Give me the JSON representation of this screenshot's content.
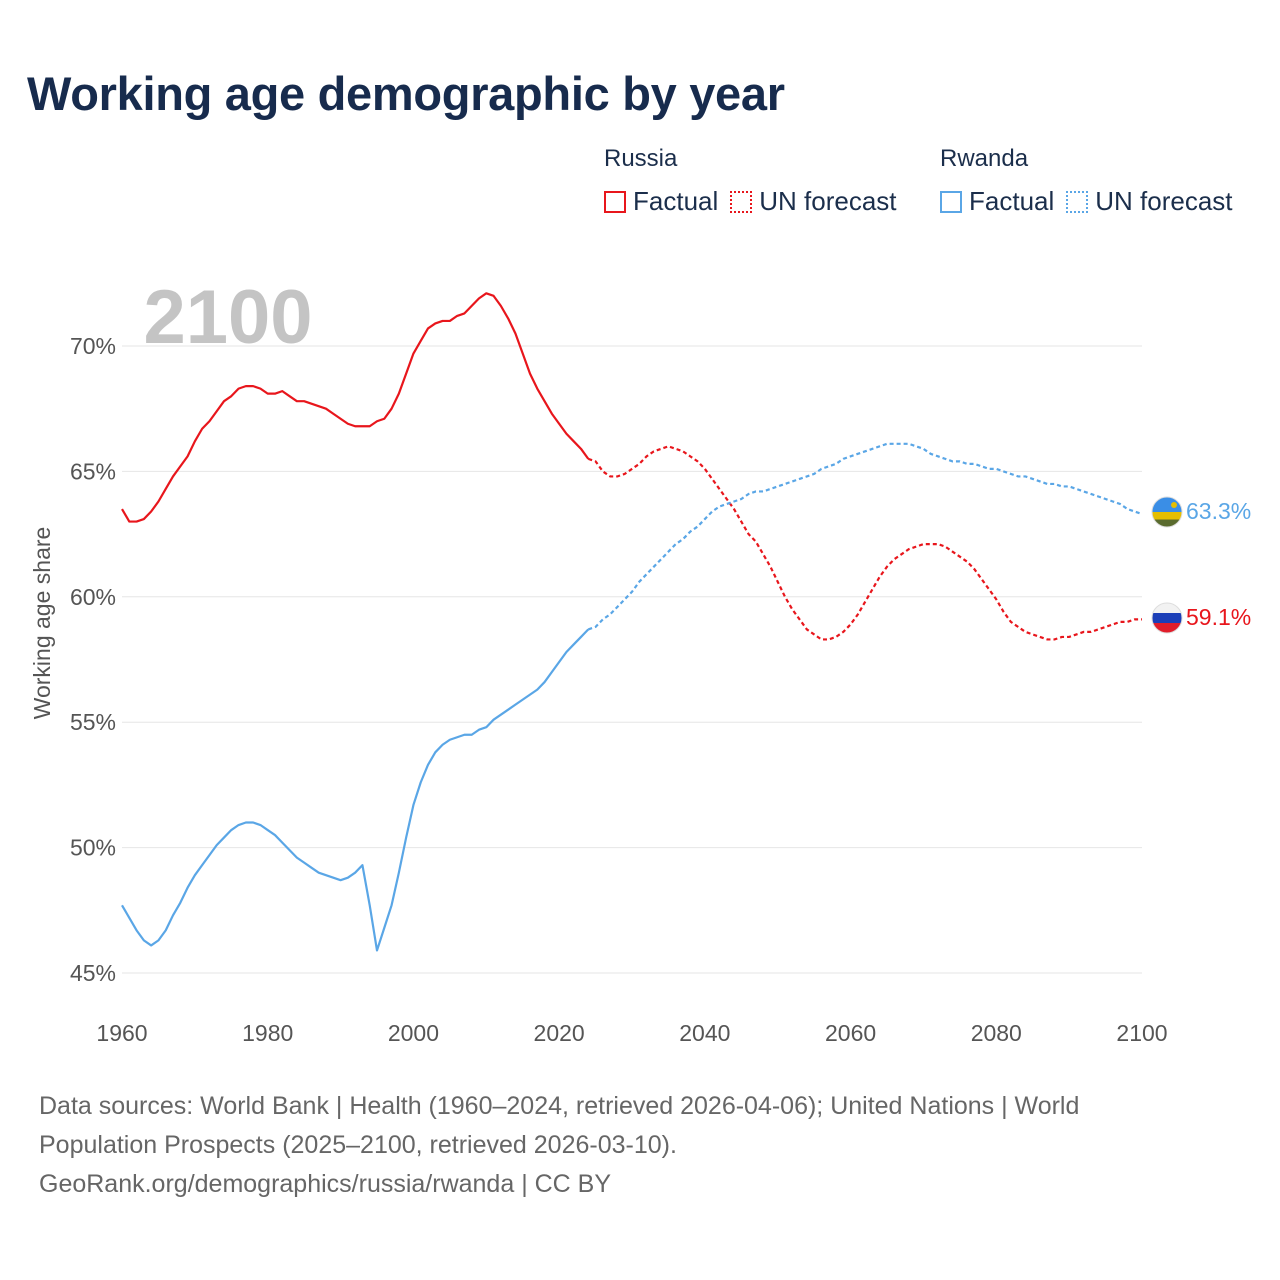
{
  "title": "Working age demographic by year",
  "legend": {
    "groups": [
      {
        "name": "Russia",
        "color": "#e8161c",
        "factual_label": "Factual",
        "forecast_label": "UN forecast"
      },
      {
        "name": "Rwanda",
        "color": "#5aa6e6",
        "factual_label": "Factual",
        "forecast_label": "UN forecast"
      }
    ]
  },
  "chart_data": {
    "type": "line",
    "title": "Working age demographic by year",
    "xlabel": "",
    "ylabel": "Working age share",
    "xlim": [
      1960,
      2100
    ],
    "ylim": [
      45,
      72.5
    ],
    "x_ticks": [
      1960,
      1980,
      2000,
      2020,
      2040,
      2060,
      2080,
      2100
    ],
    "x_tick_labels": [
      "1960",
      "1980",
      "2000",
      "2020",
      "2040",
      "2060",
      "2080",
      "2100"
    ],
    "y_ticks": [
      45,
      50,
      55,
      60,
      65,
      70
    ],
    "y_tick_labels": [
      "45%",
      "50%",
      "55%",
      "60%",
      "65%",
      "70%"
    ],
    "grid": true,
    "year_watermark": "2100",
    "factual_range": [
      1960,
      2024
    ],
    "forecast_range": [
      2025,
      2100
    ],
    "series": [
      {
        "name": "Russia",
        "color": "#e8161c",
        "end_label": "59.1%",
        "flag": "russia-flag",
        "points": [
          [
            1960,
            63.5
          ],
          [
            1961,
            63.0
          ],
          [
            1962,
            63.0
          ],
          [
            1963,
            63.1
          ],
          [
            1964,
            63.4
          ],
          [
            1965,
            63.8
          ],
          [
            1966,
            64.3
          ],
          [
            1967,
            64.8
          ],
          [
            1968,
            65.2
          ],
          [
            1969,
            65.6
          ],
          [
            1970,
            66.2
          ],
          [
            1971,
            66.7
          ],
          [
            1972,
            67.0
          ],
          [
            1973,
            67.4
          ],
          [
            1974,
            67.8
          ],
          [
            1975,
            68.0
          ],
          [
            1976,
            68.3
          ],
          [
            1977,
            68.4
          ],
          [
            1978,
            68.4
          ],
          [
            1979,
            68.3
          ],
          [
            1980,
            68.1
          ],
          [
            1981,
            68.1
          ],
          [
            1982,
            68.2
          ],
          [
            1983,
            68.0
          ],
          [
            1984,
            67.8
          ],
          [
            1985,
            67.8
          ],
          [
            1986,
            67.7
          ],
          [
            1987,
            67.6
          ],
          [
            1988,
            67.5
          ],
          [
            1989,
            67.3
          ],
          [
            1990,
            67.1
          ],
          [
            1991,
            66.9
          ],
          [
            1992,
            66.8
          ],
          [
            1993,
            66.8
          ],
          [
            1994,
            66.8
          ],
          [
            1995,
            67.0
          ],
          [
            1996,
            67.1
          ],
          [
            1997,
            67.5
          ],
          [
            1998,
            68.1
          ],
          [
            1999,
            68.9
          ],
          [
            2000,
            69.7
          ],
          [
            2001,
            70.2
          ],
          [
            2002,
            70.7
          ],
          [
            2003,
            70.9
          ],
          [
            2004,
            71.0
          ],
          [
            2005,
            71.0
          ],
          [
            2006,
            71.2
          ],
          [
            2007,
            71.3
          ],
          [
            2008,
            71.6
          ],
          [
            2009,
            71.9
          ],
          [
            2010,
            72.1
          ],
          [
            2011,
            72.0
          ],
          [
            2012,
            71.6
          ],
          [
            2013,
            71.1
          ],
          [
            2014,
            70.5
          ],
          [
            2015,
            69.7
          ],
          [
            2016,
            68.9
          ],
          [
            2017,
            68.3
          ],
          [
            2018,
            67.8
          ],
          [
            2019,
            67.3
          ],
          [
            2020,
            66.9
          ],
          [
            2021,
            66.5
          ],
          [
            2022,
            66.2
          ],
          [
            2023,
            65.9
          ],
          [
            2024,
            65.5
          ],
          [
            2025,
            65.4
          ],
          [
            2026,
            65.0
          ],
          [
            2027,
            64.8
          ],
          [
            2028,
            64.8
          ],
          [
            2029,
            64.9
          ],
          [
            2030,
            65.1
          ],
          [
            2031,
            65.3
          ],
          [
            2032,
            65.6
          ],
          [
            2033,
            65.8
          ],
          [
            2034,
            65.9
          ],
          [
            2035,
            66.0
          ],
          [
            2036,
            65.9
          ],
          [
            2037,
            65.8
          ],
          [
            2038,
            65.6
          ],
          [
            2039,
            65.4
          ],
          [
            2040,
            65.1
          ],
          [
            2041,
            64.7
          ],
          [
            2042,
            64.3
          ],
          [
            2043,
            63.9
          ],
          [
            2044,
            63.5
          ],
          [
            2045,
            63.0
          ],
          [
            2046,
            62.5
          ],
          [
            2047,
            62.2
          ],
          [
            2048,
            61.7
          ],
          [
            2049,
            61.2
          ],
          [
            2050,
            60.6
          ],
          [
            2051,
            60.0
          ],
          [
            2052,
            59.5
          ],
          [
            2053,
            59.1
          ],
          [
            2054,
            58.7
          ],
          [
            2055,
            58.5
          ],
          [
            2056,
            58.3
          ],
          [
            2057,
            58.3
          ],
          [
            2058,
            58.4
          ],
          [
            2059,
            58.6
          ],
          [
            2060,
            58.9
          ],
          [
            2061,
            59.3
          ],
          [
            2062,
            59.8
          ],
          [
            2063,
            60.3
          ],
          [
            2064,
            60.8
          ],
          [
            2065,
            61.2
          ],
          [
            2066,
            61.5
          ],
          [
            2067,
            61.7
          ],
          [
            2068,
            61.9
          ],
          [
            2069,
            62.0
          ],
          [
            2070,
            62.1
          ],
          [
            2071,
            62.1
          ],
          [
            2072,
            62.1
          ],
          [
            2073,
            62.0
          ],
          [
            2074,
            61.8
          ],
          [
            2075,
            61.6
          ],
          [
            2076,
            61.4
          ],
          [
            2077,
            61.1
          ],
          [
            2078,
            60.7
          ],
          [
            2079,
            60.3
          ],
          [
            2080,
            59.9
          ],
          [
            2081,
            59.4
          ],
          [
            2082,
            59.0
          ],
          [
            2083,
            58.8
          ],
          [
            2084,
            58.6
          ],
          [
            2085,
            58.5
          ],
          [
            2086,
            58.4
          ],
          [
            2087,
            58.3
          ],
          [
            2088,
            58.3
          ],
          [
            2089,
            58.4
          ],
          [
            2090,
            58.4
          ],
          [
            2091,
            58.5
          ],
          [
            2092,
            58.6
          ],
          [
            2093,
            58.6
          ],
          [
            2094,
            58.7
          ],
          [
            2095,
            58.8
          ],
          [
            2096,
            58.9
          ],
          [
            2097,
            59.0
          ],
          [
            2098,
            59.0
          ],
          [
            2099,
            59.1
          ],
          [
            2100,
            59.1
          ]
        ]
      },
      {
        "name": "Rwanda",
        "color": "#5aa6e6",
        "end_label": "63.3%",
        "flag": "rwanda-flag",
        "points": [
          [
            1960,
            47.7
          ],
          [
            1961,
            47.2
          ],
          [
            1962,
            46.7
          ],
          [
            1963,
            46.3
          ],
          [
            1964,
            46.1
          ],
          [
            1965,
            46.3
          ],
          [
            1966,
            46.7
          ],
          [
            1967,
            47.3
          ],
          [
            1968,
            47.8
          ],
          [
            1969,
            48.4
          ],
          [
            1970,
            48.9
          ],
          [
            1971,
            49.3
          ],
          [
            1972,
            49.7
          ],
          [
            1973,
            50.1
          ],
          [
            1974,
            50.4
          ],
          [
            1975,
            50.7
          ],
          [
            1976,
            50.9
          ],
          [
            1977,
            51.0
          ],
          [
            1978,
            51.0
          ],
          [
            1979,
            50.9
          ],
          [
            1980,
            50.7
          ],
          [
            1981,
            50.5
          ],
          [
            1982,
            50.2
          ],
          [
            1983,
            49.9
          ],
          [
            1984,
            49.6
          ],
          [
            1985,
            49.4
          ],
          [
            1986,
            49.2
          ],
          [
            1987,
            49.0
          ],
          [
            1988,
            48.9
          ],
          [
            1989,
            48.8
          ],
          [
            1990,
            48.7
          ],
          [
            1991,
            48.8
          ],
          [
            1992,
            49.0
          ],
          [
            1993,
            49.3
          ],
          [
            1994,
            47.7
          ],
          [
            1995,
            45.9
          ],
          [
            1996,
            46.8
          ],
          [
            1997,
            47.7
          ],
          [
            1998,
            49.0
          ],
          [
            1999,
            50.4
          ],
          [
            2000,
            51.7
          ],
          [
            2001,
            52.6
          ],
          [
            2002,
            53.3
          ],
          [
            2003,
            53.8
          ],
          [
            2004,
            54.1
          ],
          [
            2005,
            54.3
          ],
          [
            2006,
            54.4
          ],
          [
            2007,
            54.5
          ],
          [
            2008,
            54.5
          ],
          [
            2009,
            54.7
          ],
          [
            2010,
            54.8
          ],
          [
            2011,
            55.1
          ],
          [
            2012,
            55.3
          ],
          [
            2013,
            55.5
          ],
          [
            2014,
            55.7
          ],
          [
            2015,
            55.9
          ],
          [
            2016,
            56.1
          ],
          [
            2017,
            56.3
          ],
          [
            2018,
            56.6
          ],
          [
            2019,
            57.0
          ],
          [
            2020,
            57.4
          ],
          [
            2021,
            57.8
          ],
          [
            2022,
            58.1
          ],
          [
            2023,
            58.4
          ],
          [
            2024,
            58.7
          ],
          [
            2025,
            58.8
          ],
          [
            2026,
            59.1
          ],
          [
            2027,
            59.3
          ],
          [
            2028,
            59.6
          ],
          [
            2029,
            59.9
          ],
          [
            2030,
            60.2
          ],
          [
            2031,
            60.6
          ],
          [
            2032,
            60.9
          ],
          [
            2033,
            61.2
          ],
          [
            2034,
            61.5
          ],
          [
            2035,
            61.8
          ],
          [
            2036,
            62.1
          ],
          [
            2037,
            62.3
          ],
          [
            2038,
            62.6
          ],
          [
            2039,
            62.8
          ],
          [
            2040,
            63.1
          ],
          [
            2041,
            63.4
          ],
          [
            2042,
            63.6
          ],
          [
            2043,
            63.7
          ],
          [
            2044,
            63.8
          ],
          [
            2045,
            63.9
          ],
          [
            2046,
            64.1
          ],
          [
            2047,
            64.2
          ],
          [
            2048,
            64.2
          ],
          [
            2049,
            64.3
          ],
          [
            2050,
            64.4
          ],
          [
            2051,
            64.5
          ],
          [
            2052,
            64.6
          ],
          [
            2053,
            64.7
          ],
          [
            2054,
            64.8
          ],
          [
            2055,
            64.9
          ],
          [
            2056,
            65.1
          ],
          [
            2057,
            65.2
          ],
          [
            2058,
            65.3
          ],
          [
            2059,
            65.5
          ],
          [
            2060,
            65.6
          ],
          [
            2061,
            65.7
          ],
          [
            2062,
            65.8
          ],
          [
            2063,
            65.9
          ],
          [
            2064,
            66.0
          ],
          [
            2065,
            66.1
          ],
          [
            2066,
            66.1
          ],
          [
            2067,
            66.1
          ],
          [
            2068,
            66.1
          ],
          [
            2069,
            66.0
          ],
          [
            2070,
            65.9
          ],
          [
            2071,
            65.7
          ],
          [
            2072,
            65.6
          ],
          [
            2073,
            65.5
          ],
          [
            2074,
            65.4
          ],
          [
            2075,
            65.4
          ],
          [
            2076,
            65.3
          ],
          [
            2077,
            65.3
          ],
          [
            2078,
            65.2
          ],
          [
            2079,
            65.1
          ],
          [
            2080,
            65.1
          ],
          [
            2081,
            65.0
          ],
          [
            2082,
            64.9
          ],
          [
            2083,
            64.8
          ],
          [
            2084,
            64.8
          ],
          [
            2085,
            64.7
          ],
          [
            2086,
            64.6
          ],
          [
            2087,
            64.5
          ],
          [
            2088,
            64.5
          ],
          [
            2089,
            64.4
          ],
          [
            2090,
            64.4
          ],
          [
            2091,
            64.3
          ],
          [
            2092,
            64.2
          ],
          [
            2093,
            64.1
          ],
          [
            2094,
            64.0
          ],
          [
            2095,
            63.9
          ],
          [
            2096,
            63.8
          ],
          [
            2097,
            63.7
          ],
          [
            2098,
            63.5
          ],
          [
            2099,
            63.4
          ],
          [
            2100,
            63.3
          ]
        ]
      }
    ]
  },
  "footer": {
    "line1": "Data sources: World Bank | Health (1960–2024, retrieved 2026-04-06); United Nations | World",
    "line2": "Population Prospects (2025–2100, retrieved 2026-03-10).",
    "line3": "GeoRank.org/demographics/russia/rwanda | CC BY"
  }
}
